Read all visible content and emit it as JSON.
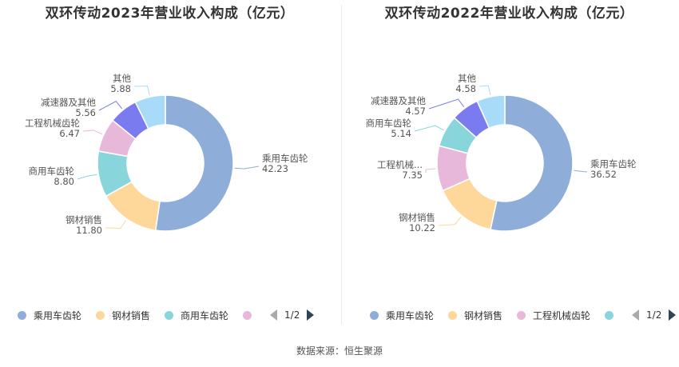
{
  "source_label": "数据来源：恒生聚源",
  "colors": {
    "乘用车齿轮": "#8eaed9",
    "钢材销售": "#fdd89a",
    "商用车齿轮": "#88d6dc",
    "工程机械齿轮": "#e7b8da",
    "减速器及其他": "#7b7bf0",
    "其他": "#a8dbf7"
  },
  "panels": [
    {
      "title": "双环传动2023年营业收入构成（亿元）",
      "legend": {
        "items": [
          "乘用车齿轮",
          "钢材销售",
          "商用车齿轮",
          ""
        ],
        "page": "1/2"
      }
    },
    {
      "title": "双环传动2022年营业收入构成（亿元）",
      "legend": {
        "items": [
          "乘用车齿轮",
          "钢材销售",
          "工程机械齿轮",
          ""
        ],
        "page": "1/2"
      }
    }
  ],
  "chart_data": [
    {
      "type": "pie",
      "title": "双环传动2023年营业收入构成（亿元）",
      "donut": true,
      "slices": [
        {
          "label": "乘用车齿轮",
          "display_label": "乘用车齿轮",
          "value": 42.23,
          "value_text": "42.23"
        },
        {
          "label": "钢材销售",
          "display_label": "钢材销售",
          "value": 11.8,
          "value_text": "11.80"
        },
        {
          "label": "商用车齿轮",
          "display_label": "商用车齿轮",
          "value": 8.8,
          "value_text": "8.80"
        },
        {
          "label": "工程机械齿轮",
          "display_label": "工程机械齿轮",
          "value": 6.47,
          "value_text": "6.47"
        },
        {
          "label": "减速器及其他",
          "display_label": "减速器及其他",
          "value": 5.56,
          "value_text": "5.56"
        },
        {
          "label": "其他",
          "display_label": "其他",
          "value": 5.88,
          "value_text": "5.88"
        }
      ]
    },
    {
      "type": "pie",
      "title": "双环传动2022年营业收入构成（亿元）",
      "donut": true,
      "slices": [
        {
          "label": "乘用车齿轮",
          "display_label": "乘用车齿轮",
          "value": 36.52,
          "value_text": "36.52"
        },
        {
          "label": "钢材销售",
          "display_label": "钢材销售",
          "value": 10.22,
          "value_text": "10.22"
        },
        {
          "label": "工程机械齿轮",
          "display_label": "工程机械...",
          "value": 7.35,
          "value_text": "7.35"
        },
        {
          "label": "商用车齿轮",
          "display_label": "商用车齿轮",
          "value": 5.14,
          "value_text": "5.14"
        },
        {
          "label": "减速器及其他",
          "display_label": "减速器及其他",
          "value": 4.57,
          "value_text": "4.57"
        },
        {
          "label": "其他",
          "display_label": "其他",
          "value": 4.58,
          "value_text": "4.58"
        }
      ]
    }
  ]
}
